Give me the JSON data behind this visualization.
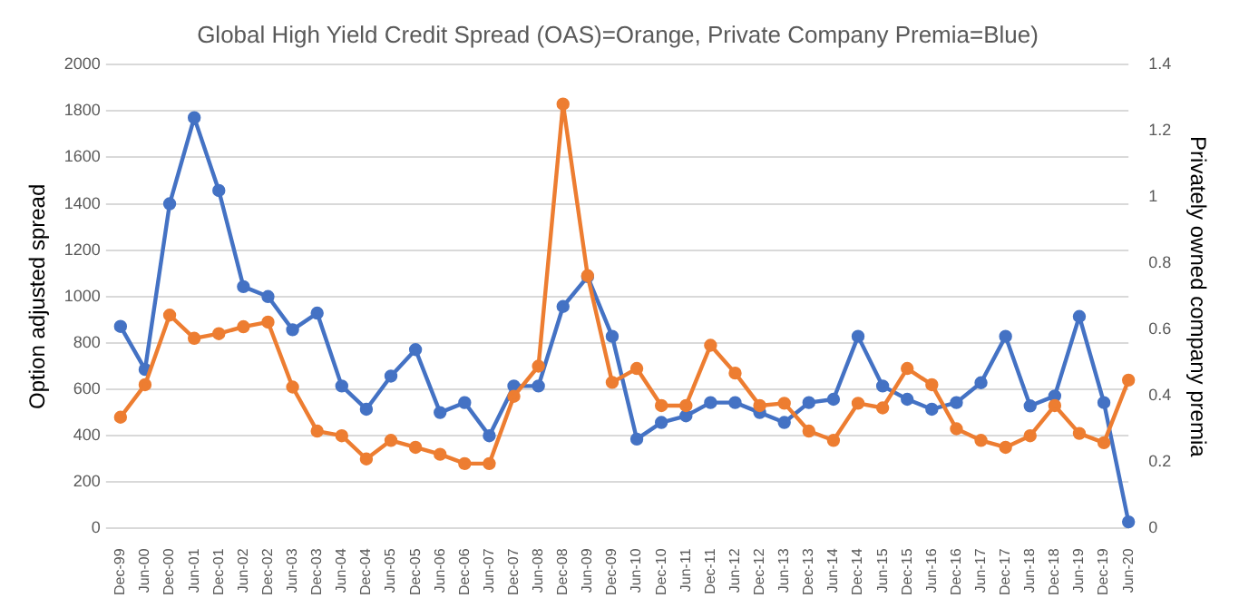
{
  "chart_data": {
    "type": "line",
    "title": "Global High Yield Credit Spread (OAS)=Orange, Private Company Premia=Blue)",
    "ylabel": "Option adjusted spread",
    "y2label": "Privately owned company premia",
    "categories": [
      "Dec-99",
      "Jun-00",
      "Dec-00",
      "Jun-01",
      "Dec-01",
      "Jun-02",
      "Dec-02",
      "Jun-03",
      "Dec-03",
      "Jun-04",
      "Dec-04",
      "Jun-05",
      "Dec-05",
      "Jun-06",
      "Dec-06",
      "Jun-07",
      "Dec-07",
      "Jun-08",
      "Dec-08",
      "Jun-09",
      "Dec-09",
      "Jun-10",
      "Dec-10",
      "Jun-11",
      "Dec-11",
      "Jun-12",
      "Dec-12",
      "Jun-13",
      "Dec-13",
      "Jun-14",
      "Dec-14",
      "Jun-15",
      "Dec-15",
      "Jun-16",
      "Dec-16",
      "Jun-17",
      "Dec-17",
      "Jun-18",
      "Dec-18",
      "Jun-19",
      "Dec-19",
      "Jun-20"
    ],
    "series": [
      {
        "color": "#ed7d31",
        "values": [
          480,
          620,
          920,
          820,
          840,
          870,
          890,
          610,
          420,
          400,
          300,
          380,
          350,
          320,
          280,
          280,
          570,
          700,
          1830,
          1090,
          630,
          690,
          530,
          530,
          790,
          670,
          530,
          540,
          420,
          380,
          540,
          520,
          690,
          620,
          430,
          380,
          350,
          400,
          530,
          410,
          370,
          640
        ]
      },
      {
        "color": "#4472c4",
        "axis": "y2",
        "values": [
          0.61,
          0.48,
          0.98,
          1.24,
          1.02,
          0.73,
          0.7,
          0.6,
          0.65,
          0.43,
          0.36,
          0.46,
          0.54,
          0.35,
          0.38,
          0.28,
          0.43,
          0.43,
          0.67,
          0.76,
          0.58,
          0.27,
          0.32,
          0.34,
          0.38,
          0.38,
          0.35,
          0.32,
          0.38,
          0.39,
          0.58,
          0.43,
          0.39,
          0.36,
          0.38,
          0.44,
          0.58,
          0.37,
          0.4,
          0.64,
          0.38,
          0.02
        ]
      }
    ],
    "ylim": [
      0,
      2000
    ],
    "yticks": [
      0,
      200,
      400,
      600,
      800,
      1000,
      1200,
      1400,
      1600,
      1800,
      2000
    ],
    "y2lim": [
      0,
      1.4
    ],
    "y2ticks": [
      0,
      0.2,
      0.4,
      0.6,
      0.8,
      1,
      1.2,
      1.4
    ],
    "grid": "y",
    "legend": false,
    "marker": "circle",
    "line_style": "solid"
  }
}
